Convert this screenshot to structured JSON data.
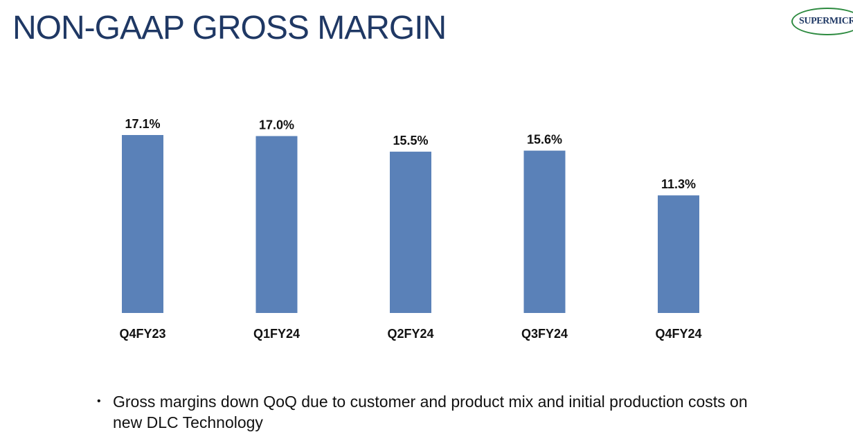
{
  "header": {
    "title": "NON-GAAP GROSS MARGIN",
    "title_color": "#1f3864"
  },
  "logo": {
    "text": "SUPERMICR",
    "text_color": "#1f3864",
    "ring_color": "#2c8a3f"
  },
  "chart_data": {
    "type": "bar",
    "categories": [
      "Q4FY23",
      "Q1FY24",
      "Q2FY24",
      "Q3FY24",
      "Q4FY24"
    ],
    "values": [
      17.1,
      17.0,
      15.5,
      15.6,
      11.3
    ],
    "data_labels": [
      "17.1%",
      "17.0%",
      "15.5%",
      "15.6%",
      "11.3%"
    ],
    "title": "",
    "xlabel": "",
    "ylabel": "",
    "unit": "%",
    "ylim": [
      0,
      17.1
    ],
    "grid": false,
    "bar_color": "#5a81b8"
  },
  "bullets": [
    {
      "marker": "•",
      "text": "Gross margins down QoQ due to customer and product mix and initial production costs on new DLC Technology"
    }
  ]
}
